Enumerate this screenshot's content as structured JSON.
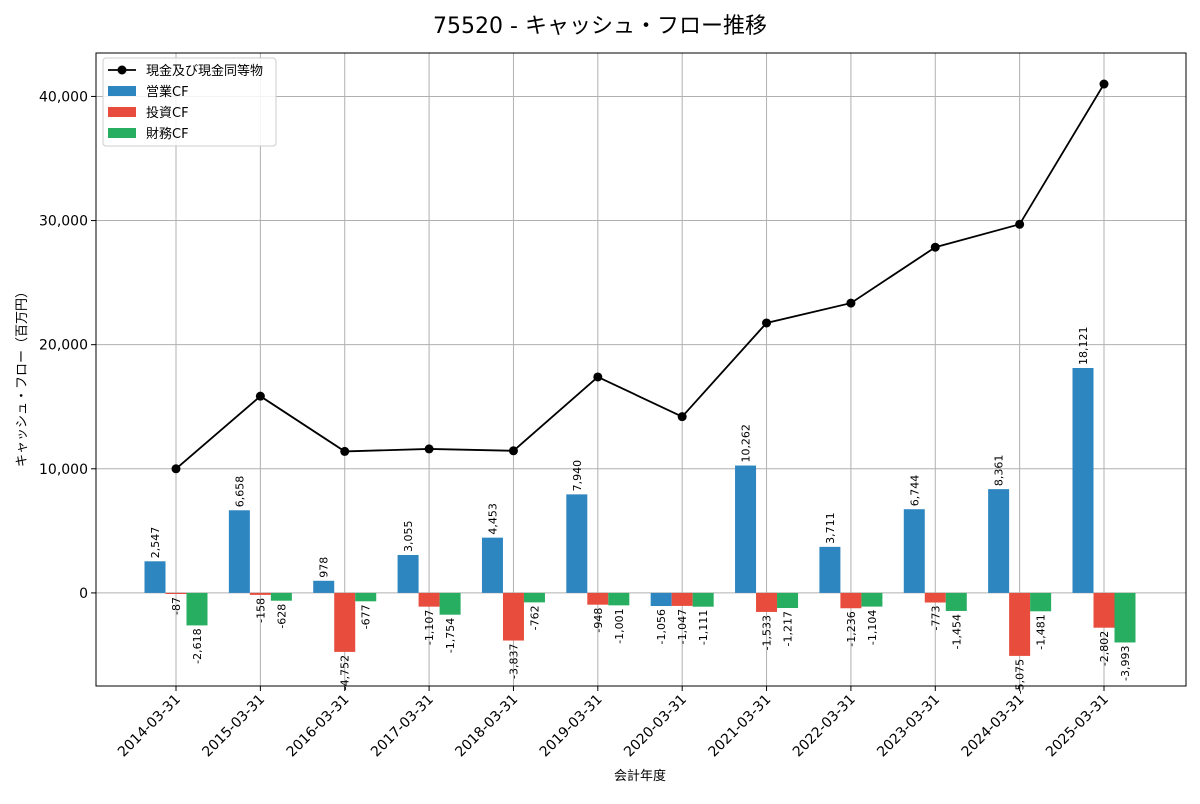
{
  "chart_data": {
    "type": "bar",
    "title": "75520 - キャッシュ・フロー推移",
    "xlabel": "会計年度",
    "ylabel": "キャッシュ・フロー（百万円）",
    "ylim": [
      -7500,
      43500
    ],
    "yticks": [
      0,
      10000,
      20000,
      30000,
      40000
    ],
    "ytick_labels": [
      "0",
      "10,000",
      "20,000",
      "30,000",
      "40,000"
    ],
    "grid": true,
    "legend_position": "top-left",
    "categories": [
      "2014-03-31",
      "2015-03-31",
      "2016-03-31",
      "2017-03-31",
      "2018-03-31",
      "2019-03-31",
      "2020-03-31",
      "2021-03-31",
      "2022-03-31",
      "2023-03-31",
      "2024-03-31",
      "2025-03-31"
    ],
    "series": [
      {
        "name": "営業CF",
        "kind": "bar",
        "color": "#2e86c1",
        "values": [
          2547,
          6658,
          978,
          3055,
          4453,
          7940,
          -1056,
          10262,
          3711,
          6744,
          8361,
          18121
        ],
        "labels": [
          "2,547",
          "6,658",
          "978",
          "3,055",
          "4,453",
          "7,940",
          "-1,056",
          "10,262",
          "3,711",
          "6,744",
          "8,361",
          "18,121"
        ]
      },
      {
        "name": "投資CF",
        "kind": "bar",
        "color": "#e74c3c",
        "values": [
          -87,
          -158,
          -4752,
          -1107,
          -3837,
          -948,
          -1047,
          -1533,
          -1236,
          -773,
          -5075,
          -2802
        ],
        "labels": [
          "-87",
          "-158",
          "-4,752",
          "-1,107",
          "-3,837",
          "-948",
          "-1,047",
          "-1,533",
          "-1,236",
          "-773",
          "-5,075",
          "-2,802"
        ]
      },
      {
        "name": "財務CF",
        "kind": "bar",
        "color": "#27ae60",
        "values": [
          -2618,
          -628,
          -677,
          -1754,
          -762,
          -1001,
          -1111,
          -1217,
          -1104,
          -1454,
          -1481,
          -3993
        ],
        "labels": [
          "-2,618",
          "-628",
          "-677",
          "-1,754",
          "-762",
          "-1,001",
          "-1,111",
          "-1,217",
          "-1,104",
          "-1,454",
          "-1,481",
          "-3,993"
        ]
      },
      {
        "name": "現金及び現金同等物",
        "kind": "line",
        "color": "#000000",
        "values": [
          10000,
          15850,
          11400,
          11600,
          11450,
          17400,
          14200,
          21750,
          23350,
          27850,
          29700,
          41000
        ]
      }
    ]
  }
}
